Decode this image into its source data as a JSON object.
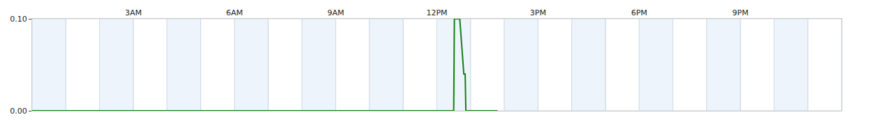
{
  "chart_data": {
    "type": "line",
    "x": [
      0,
      12.5,
      12.52,
      12.68,
      12.7,
      12.72,
      12.74,
      12.76,
      12.78,
      12.8,
      12.84,
      12.86,
      13.8
    ],
    "values": [
      0,
      0,
      0.1,
      0.1,
      0.09,
      0.08,
      0.07,
      0.06,
      0.05,
      0.04,
      0.04,
      0,
      0
    ],
    "color": "#128012",
    "line_style": "solid",
    "xlim": [
      0,
      24
    ],
    "xticks": [
      {
        "value": 3,
        "label": "3AM"
      },
      {
        "value": 6,
        "label": "6AM"
      },
      {
        "value": 9,
        "label": "9AM"
      },
      {
        "value": 12,
        "label": "12PM"
      },
      {
        "value": 15,
        "label": "3PM"
      },
      {
        "value": 18,
        "label": "6PM"
      },
      {
        "value": 21,
        "label": "9PM"
      }
    ],
    "ylim": [
      0,
      0.1
    ],
    "yticks": [
      {
        "value": 0,
        "label": "0.00"
      },
      {
        "value": 0.1,
        "label": "0.10"
      }
    ],
    "grid": true
  }
}
